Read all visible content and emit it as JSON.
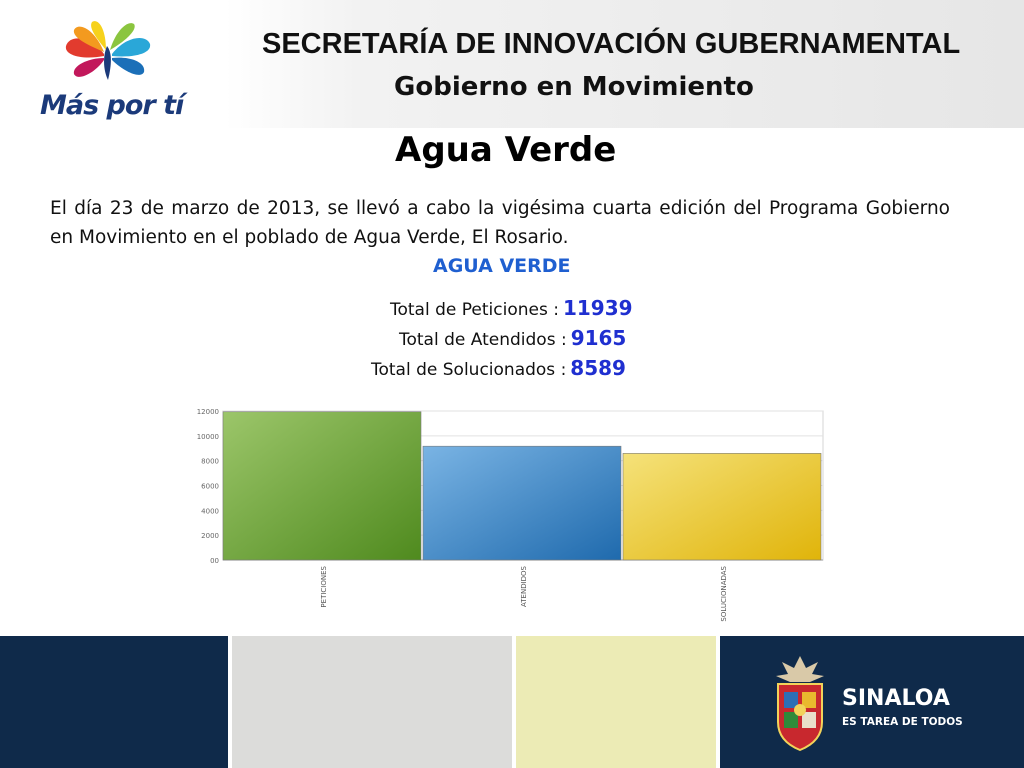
{
  "header": {
    "logo_text": "Más por tí",
    "org_title": "SECRETARÍA DE INNOVACIÓN GUBERNAMENTAL",
    "org_subtitle": "Gobierno en Movimiento"
  },
  "page": {
    "title": "Agua Verde",
    "intro": "El día 23 de marzo de 2013, se llevó a cabo la vigésima cuarta edición del Programa Gobierno en Movimiento en el poblado de Agua Verde, El Rosario."
  },
  "stats": [
    {
      "label": "Total de Peticiones :",
      "value": "11939"
    },
    {
      "label": "Total de Atendidos :",
      "value": "9165"
    },
    {
      "label": "Total de Solucionados :",
      "value": "8589"
    }
  ],
  "chart_data": {
    "type": "bar",
    "title": "AGUA VERDE",
    "categories": [
      "PETICIONES",
      "ATENDIDOS",
      "SOLUCIONADAS"
    ],
    "values": [
      11939,
      9165,
      8589
    ],
    "yticks": [
      "00",
      "2000",
      "4000",
      "6000",
      "8000",
      "10000",
      "12000"
    ],
    "ylim": [
      0,
      12000
    ],
    "grid": true,
    "colors": [
      "#5f9a2e",
      "#2f7ec2",
      "#e6c21e"
    ]
  },
  "footer": {
    "brand": "SINALOA",
    "slogan": "ES TAREA DE TODOS",
    "colors": [
      "#0f2a4a",
      "#dcdcda",
      "#ecebb5",
      "#0f2a4a"
    ]
  }
}
